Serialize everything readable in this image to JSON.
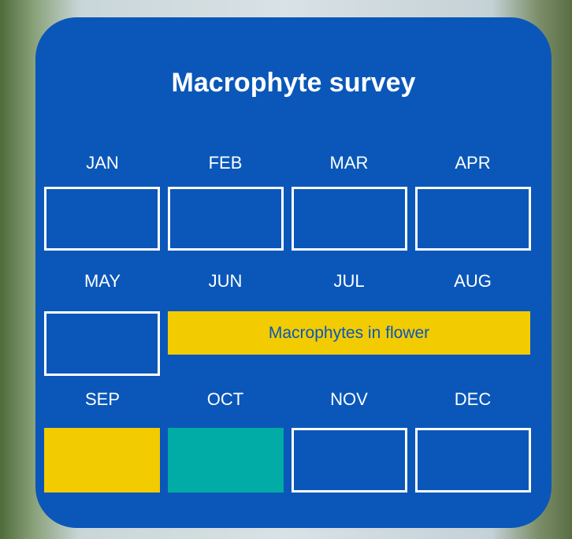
{
  "title": "Macrophyte survey",
  "months": [
    "JAN",
    "FEB",
    "MAR",
    "APR",
    "MAY",
    "JUN",
    "JUL",
    "AUG",
    "SEP",
    "OCT",
    "NOV",
    "DEC"
  ],
  "flower_label": "Macrophytes in flower"
}
